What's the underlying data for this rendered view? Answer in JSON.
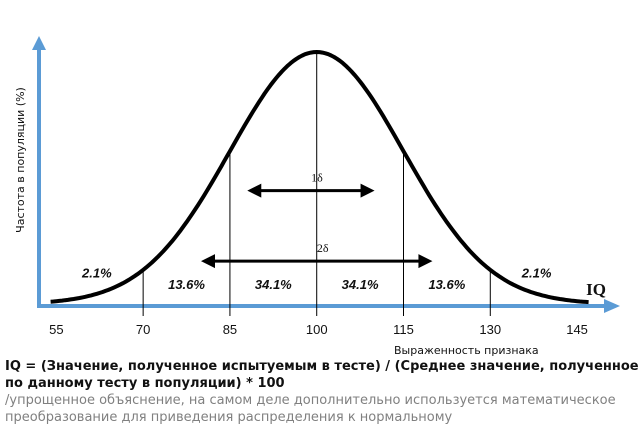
{
  "chart_data": {
    "type": "line",
    "ylabel": "Частота в популяции (%)",
    "xlabel": "Выраженность признака",
    "axis_name": "IQ",
    "xlim": [
      52,
      150
    ],
    "x_ticks": [
      55,
      70,
      85,
      100,
      115,
      130,
      145
    ],
    "curve": {
      "mean": 100,
      "sd": 15
    },
    "vlines": [
      70,
      85,
      100,
      115,
      130
    ],
    "regions": [
      {
        "label": "2.1%",
        "x": 62,
        "level": 0.105
      },
      {
        "label": "13.6%",
        "x": 77.5,
        "level": 0.06
      },
      {
        "label": "34.1%",
        "x": 92.5,
        "level": 0.06
      },
      {
        "label": "34.1%",
        "x": 107.5,
        "level": 0.06
      },
      {
        "label": "13.6%",
        "x": 122.5,
        "level": 0.06
      },
      {
        "label": "2.1%",
        "x": 138,
        "level": 0.105
      }
    ],
    "spans": [
      {
        "label": "1δ",
        "from": 88,
        "to": 110,
        "level": 0.45
      },
      {
        "label": "2δ",
        "from": 80,
        "to": 120,
        "level": 0.17
      }
    ],
    "colors": {
      "axis": "#5b9bd5",
      "curve": "#000000",
      "guides": "#000000"
    }
  },
  "formula": "IQ = (Значение, полученное испытуемым в тесте) / (Среднее значение, полученное по данному тесту в популяции) * 100",
  "note": "/упрощенное объяснение, на самом деле дополнительно используется математическое преобразование для приведения распределения к нормальному"
}
